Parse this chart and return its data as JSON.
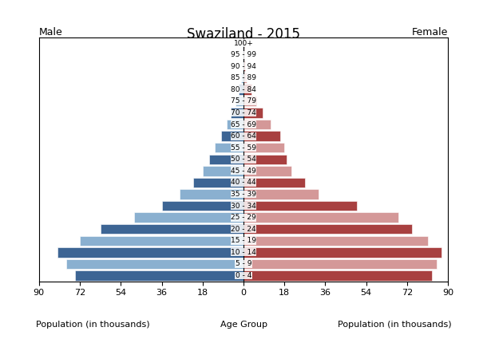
{
  "title": "Swaziland - 2015",
  "age_groups": [
    "0 - 4",
    "5 - 9",
    "10 - 14",
    "15 - 19",
    "20 - 24",
    "25 - 29",
    "30 - 34",
    "35 - 39",
    "40 - 44",
    "45 - 49",
    "50 - 54",
    "55 - 59",
    "60 - 64",
    "65 - 69",
    "70 - 74",
    "75 - 79",
    "80 - 84",
    "85 - 89",
    "90 - 94",
    "95 - 99",
    "100+"
  ],
  "male": [
    74.0,
    78.0,
    82.0,
    72.0,
    63.0,
    48.0,
    36.0,
    28.0,
    22.0,
    18.0,
    15.0,
    12.5,
    10.0,
    7.5,
    5.5,
    3.5,
    2.0,
    1.0,
    0.5,
    0.3,
    0.2
  ],
  "female": [
    83.0,
    85.0,
    87.0,
    81.0,
    74.0,
    68.0,
    50.0,
    33.0,
    27.0,
    21.0,
    19.0,
    18.0,
    16.0,
    12.0,
    8.5,
    5.5,
    3.5,
    1.5,
    0.6,
    0.4,
    0.2
  ],
  "dark_blue": "#3d6594",
  "light_blue": "#8ab0d0",
  "dark_red": "#a84040",
  "light_red": "#d49898",
  "xlabel_left": "Population (in thousands)",
  "xlabel_center": "Age Group",
  "xlabel_right": "Population (in thousands)",
  "label_male": "Male",
  "label_female": "Female",
  "xlim": 90,
  "xticks": [
    0,
    18,
    36,
    54,
    72,
    90
  ],
  "background_color": "#ffffff"
}
